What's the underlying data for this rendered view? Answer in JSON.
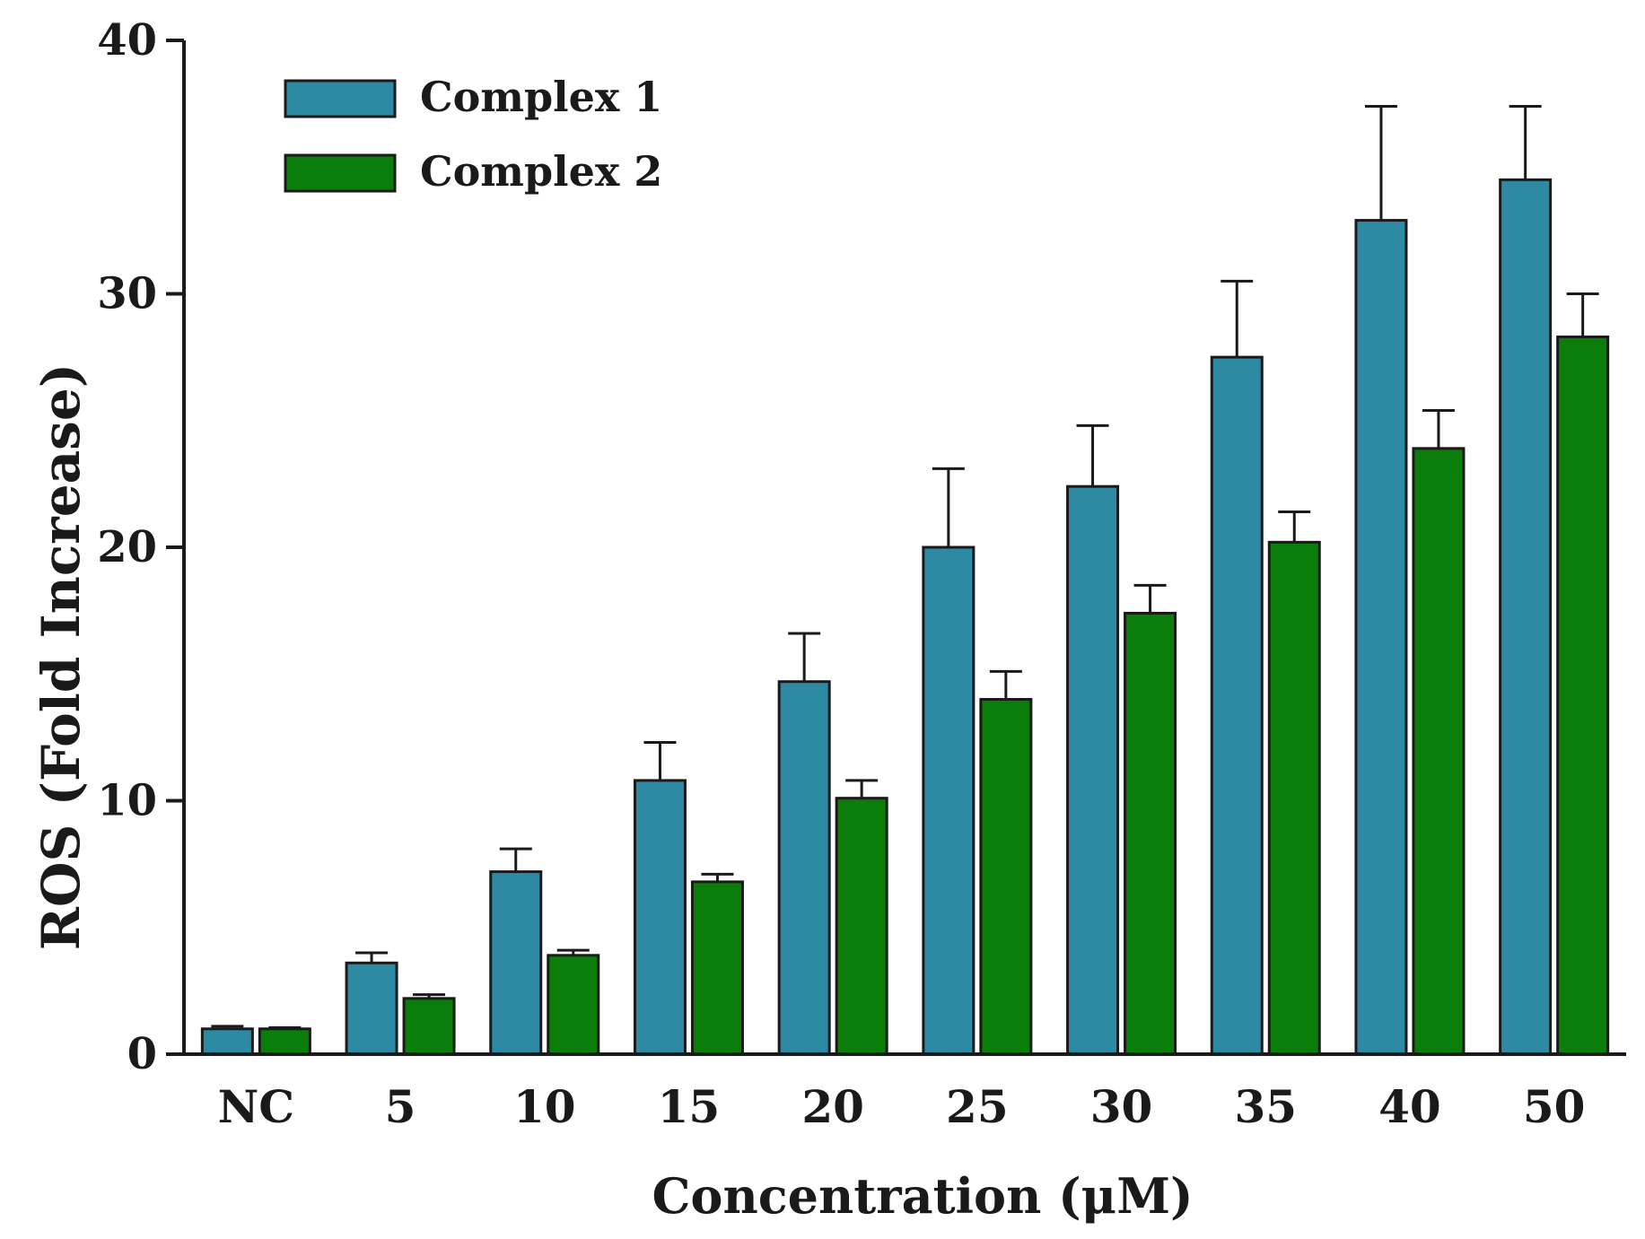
{
  "chart_data": {
    "type": "bar",
    "title": "",
    "xlabel": "Concentration (μM)",
    "ylabel": "ROS (Fold Increase)",
    "ylim": [
      0,
      40
    ],
    "yticks": [
      0,
      10,
      20,
      30,
      40
    ],
    "grid": false,
    "legend_position": "top-left",
    "categories": [
      "NC",
      "5",
      "10",
      "15",
      "20",
      "25",
      "30",
      "35",
      "40",
      "50"
    ],
    "series": [
      {
        "name": "Complex 1",
        "color": "#2E8AA3",
        "values": [
          1.0,
          3.6,
          7.2,
          10.8,
          14.7,
          20.0,
          22.4,
          27.5,
          32.9,
          34.5
        ],
        "errors": [
          0.1,
          0.4,
          0.9,
          1.5,
          1.9,
          3.1,
          2.4,
          3.0,
          4.5,
          2.9
        ]
      },
      {
        "name": "Complex 2",
        "color": "#0A7D0A",
        "values": [
          1.0,
          2.2,
          3.9,
          6.8,
          10.1,
          14.0,
          17.4,
          20.2,
          23.9,
          28.3
        ],
        "errors": [
          0.05,
          0.15,
          0.2,
          0.3,
          0.7,
          1.1,
          1.1,
          1.2,
          1.5,
          1.7
        ]
      }
    ]
  }
}
